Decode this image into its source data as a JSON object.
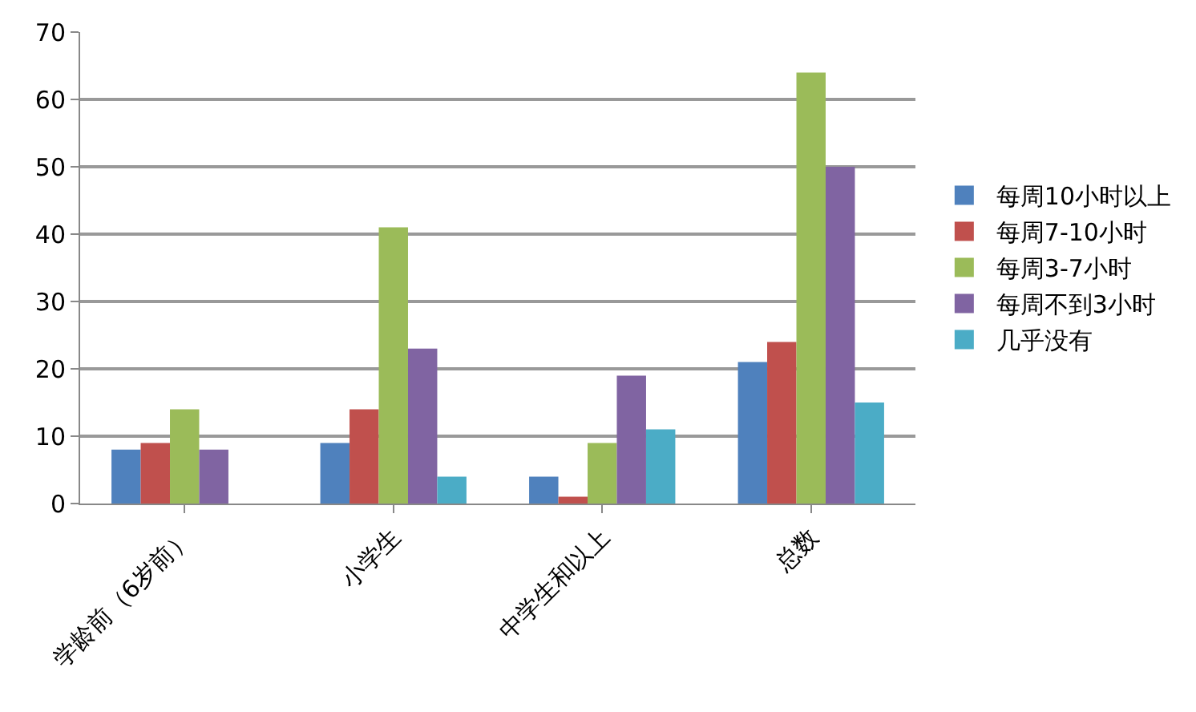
{
  "chart_data": {
    "type": "bar",
    "categories": [
      "学龄前（6岁前）",
      "小学生",
      "中学生和以上",
      "总数"
    ],
    "series": [
      {
        "name": "每周10小时以上",
        "color": "#4f81bd",
        "values": [
          8,
          9,
          4,
          21
        ]
      },
      {
        "name": "每周7-10小时",
        "color": "#c0504d",
        "values": [
          9,
          14,
          1,
          24
        ]
      },
      {
        "name": "每周3-7小时",
        "color": "#9bbb59",
        "values": [
          14,
          41,
          9,
          64
        ]
      },
      {
        "name": "每周不到3小时",
        "color": "#8064a2",
        "values": [
          8,
          23,
          19,
          50
        ]
      },
      {
        "name": "几乎没有",
        "color": "#4bacc6",
        "values": [
          0,
          4,
          11,
          15
        ]
      }
    ],
    "ylim": [
      0,
      70
    ],
    "yticks": [
      0,
      10,
      20,
      30,
      40,
      50,
      60,
      70
    ],
    "grid": "y",
    "legend": "right"
  }
}
